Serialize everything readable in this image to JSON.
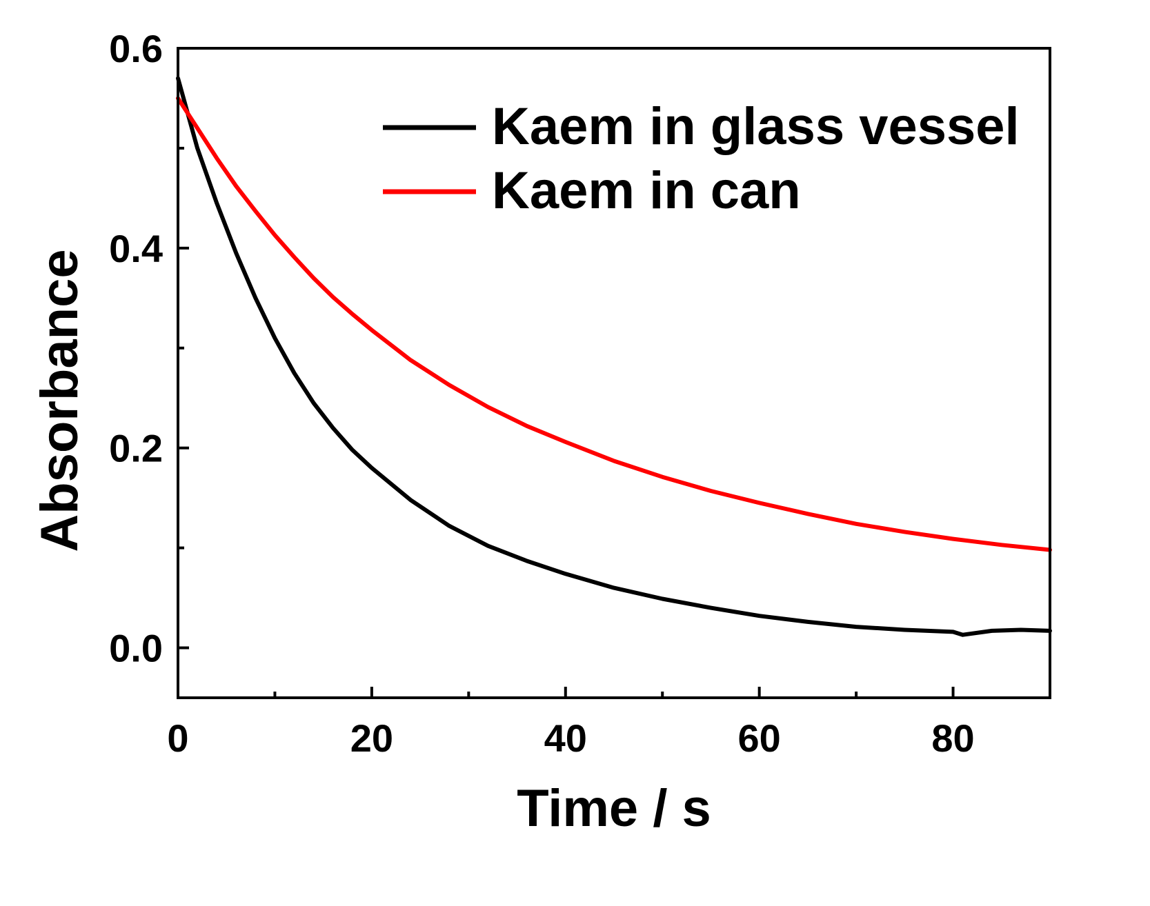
{
  "chart_data": {
    "type": "line",
    "title": "",
    "xlabel": "Time / s",
    "ylabel": "Absorbance",
    "xlim": [
      0,
      90
    ],
    "ylim": [
      -0.05,
      0.6
    ],
    "xticks": [
      0,
      20,
      40,
      60,
      80
    ],
    "xtick_labels": [
      "0",
      "20",
      "40",
      "60",
      "80"
    ],
    "xminor_ticks": [
      10,
      30,
      50,
      70
    ],
    "yticks": [
      0.0,
      0.2,
      0.4,
      0.6
    ],
    "ytick_labels": [
      "0.0",
      "0.2",
      "0.4",
      "0.6"
    ],
    "yminor_ticks": [
      0.1,
      0.3,
      0.5
    ],
    "grid": false,
    "legend_position": "top-right",
    "series": [
      {
        "name": "Kaem in glass vessel",
        "color": "#000000",
        "x": [
          0,
          2,
          4,
          6,
          8,
          10,
          12,
          14,
          16,
          18,
          20,
          24,
          28,
          32,
          36,
          40,
          45,
          50,
          55,
          60,
          65,
          70,
          75,
          80,
          81,
          84,
          87,
          90
        ],
        "y": [
          0.57,
          0.5,
          0.445,
          0.395,
          0.35,
          0.31,
          0.275,
          0.245,
          0.22,
          0.198,
          0.18,
          0.148,
          0.122,
          0.102,
          0.087,
          0.074,
          0.06,
          0.049,
          0.04,
          0.032,
          0.026,
          0.021,
          0.018,
          0.016,
          0.013,
          0.017,
          0.018,
          0.017
        ]
      },
      {
        "name": "Kaem in can",
        "color": "#ff0000",
        "x": [
          0,
          2,
          4,
          6,
          8,
          10,
          12,
          14,
          16,
          18,
          20,
          24,
          28,
          32,
          36,
          40,
          45,
          50,
          55,
          60,
          65,
          70,
          75,
          80,
          85,
          90
        ],
        "y": [
          0.55,
          0.52,
          0.49,
          0.462,
          0.437,
          0.413,
          0.391,
          0.37,
          0.351,
          0.334,
          0.318,
          0.288,
          0.263,
          0.241,
          0.222,
          0.206,
          0.187,
          0.171,
          0.157,
          0.145,
          0.134,
          0.124,
          0.116,
          0.109,
          0.103,
          0.098
        ]
      }
    ]
  }
}
